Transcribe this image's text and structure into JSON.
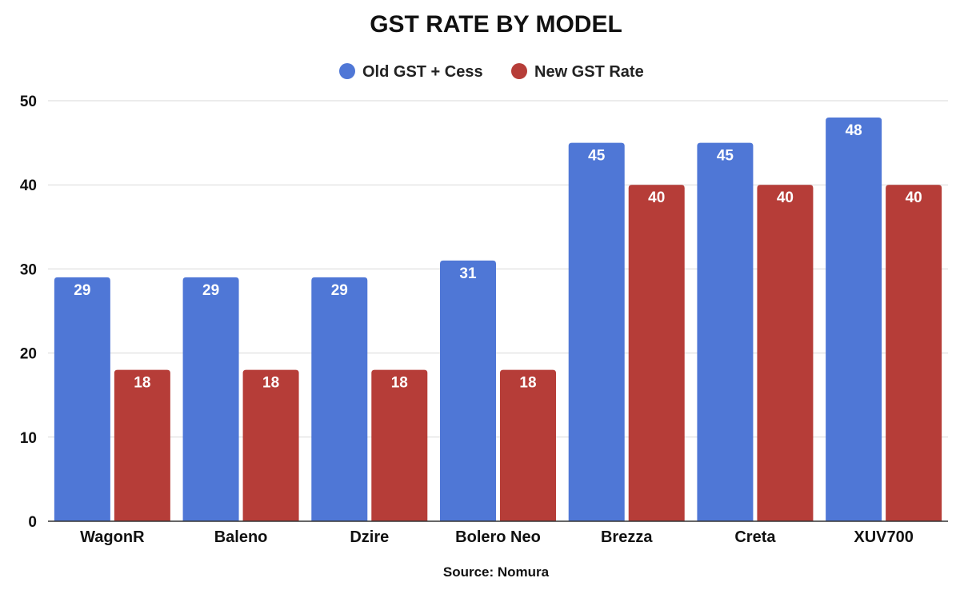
{
  "chart_data": {
    "type": "bar",
    "title": "GST RATE BY MODEL",
    "categories": [
      "WagonR",
      "Baleno",
      "Dzire",
      "Bolero Neo",
      "Brezza",
      "Creta",
      "XUV700"
    ],
    "series": [
      {
        "name": "Old GST + Cess",
        "color": "#4f77d6",
        "values": [
          29,
          29,
          29,
          31,
          45,
          45,
          48
        ]
      },
      {
        "name": "New GST Rate",
        "color": "#b63d38",
        "values": [
          18,
          18,
          18,
          18,
          40,
          40,
          40
        ]
      }
    ],
    "ylim": [
      0,
      50
    ],
    "yticks": [
      0,
      10,
      20,
      30,
      40,
      50
    ],
    "xlabel": "",
    "ylabel": "",
    "grid": true,
    "legend_position": "top-center",
    "source": "Source: Nomura"
  }
}
